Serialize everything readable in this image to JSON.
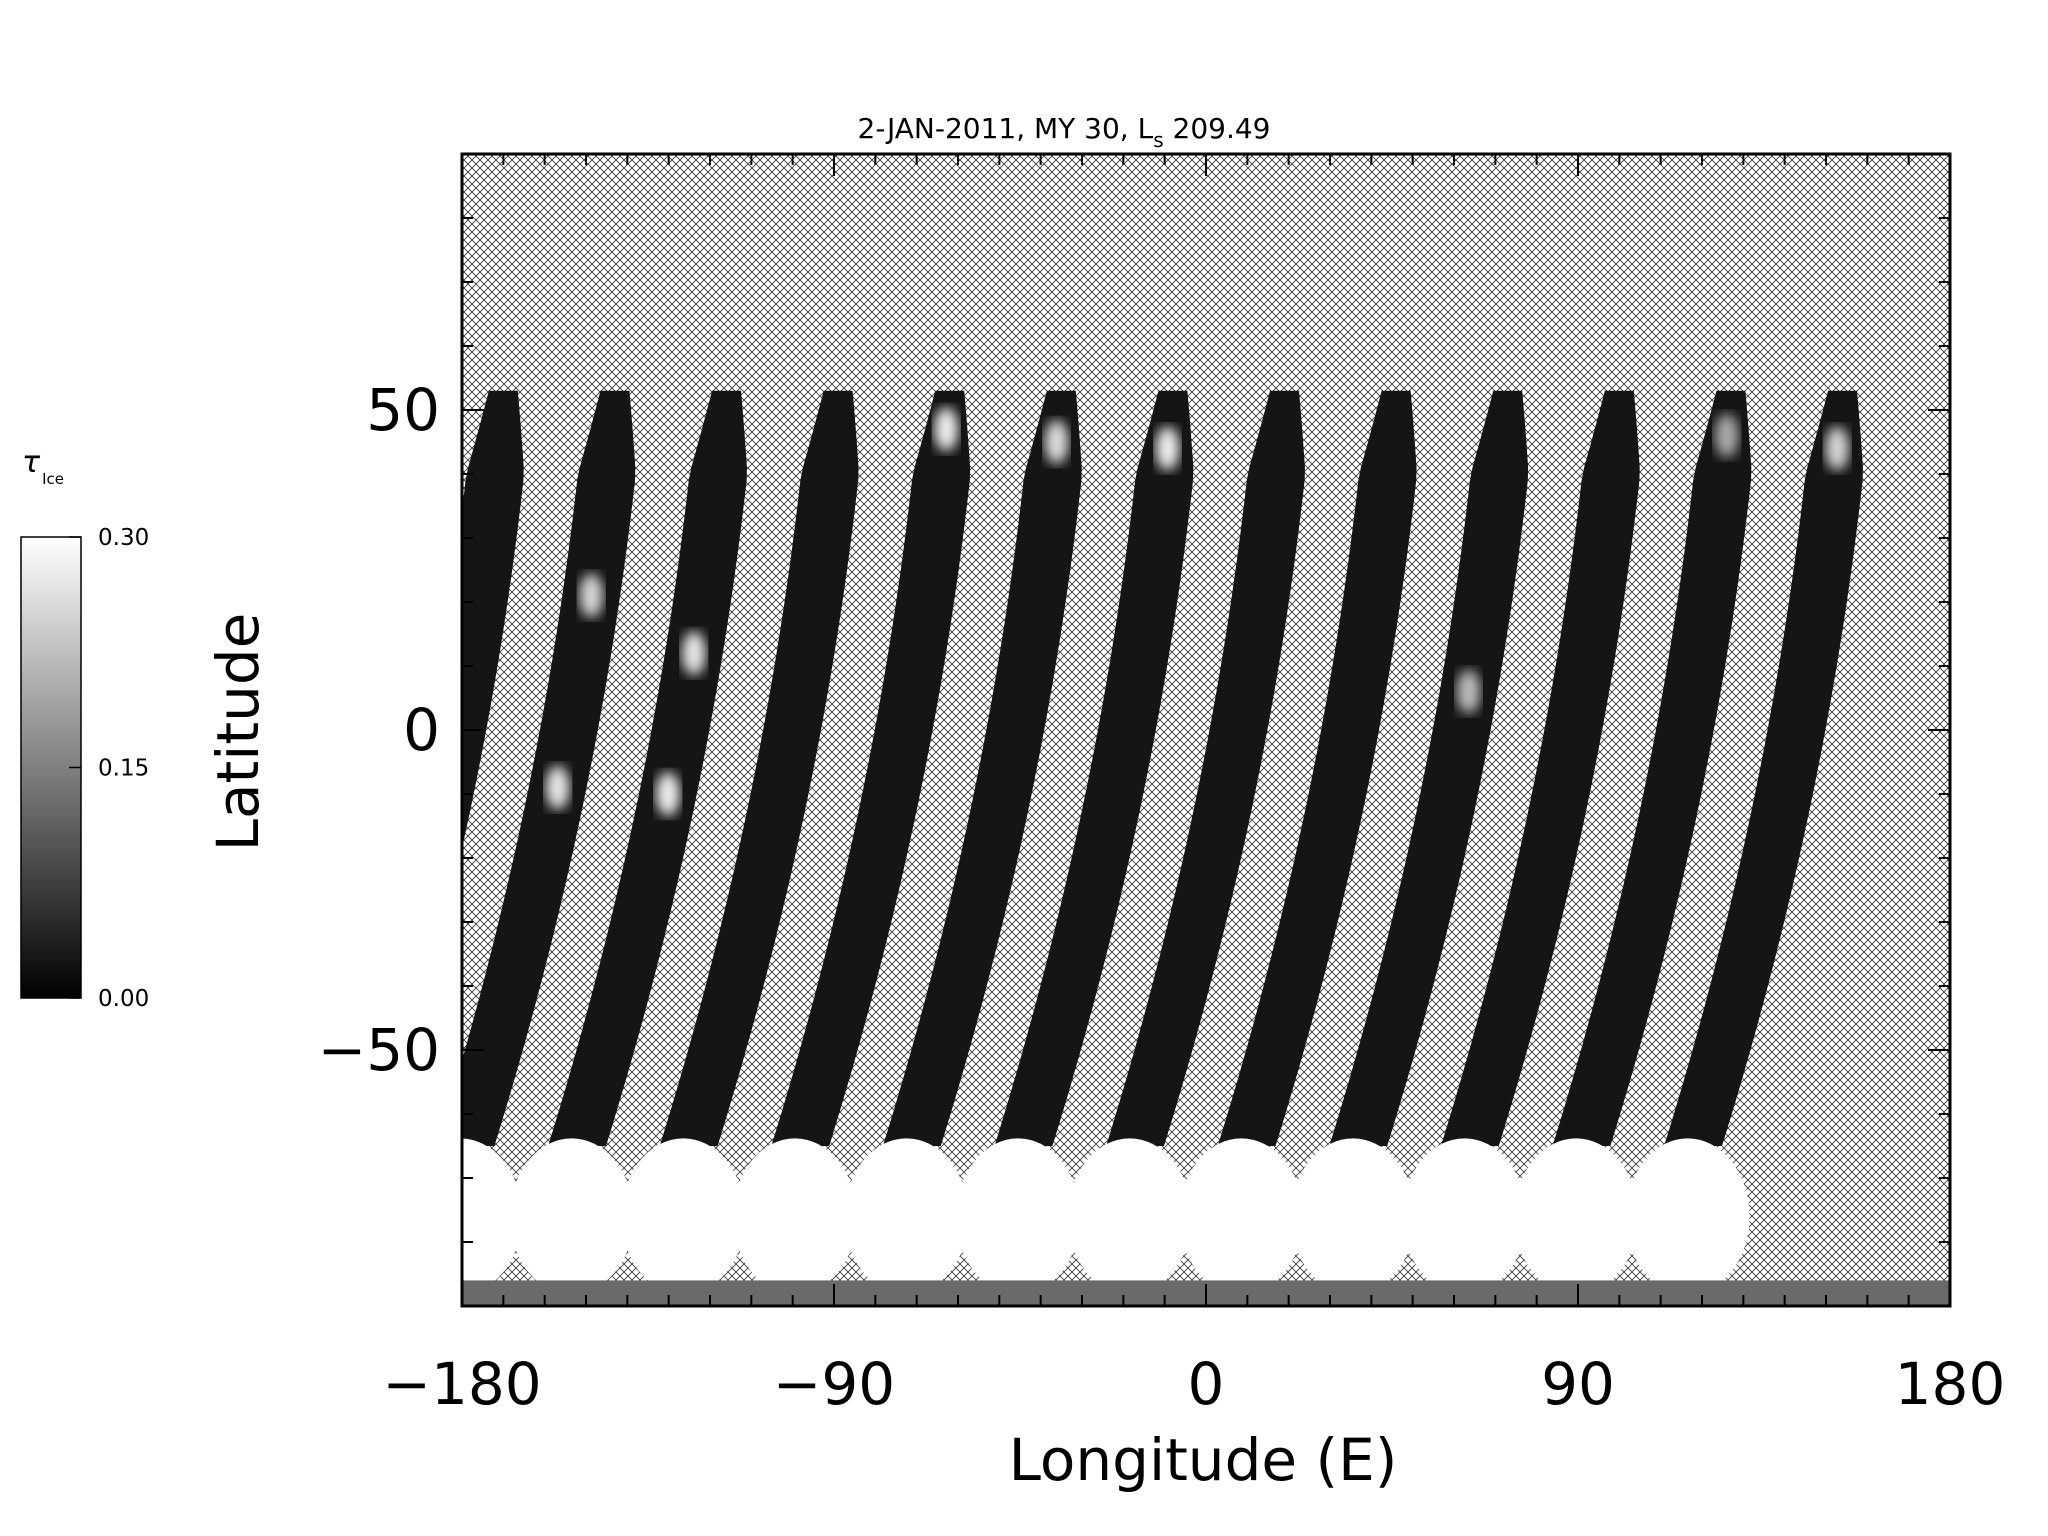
{
  "chart_data": {
    "type": "heatmap",
    "title_main": "2-JAN-2011, MY 30,  L",
    "title_sub": "s",
    "title_value": " 209.49",
    "xlabel": "Longitude (E)",
    "ylabel": "Latitude",
    "xlim": [
      -180,
      180
    ],
    "ylim": [
      -90,
      90
    ],
    "xticks": [
      -180,
      -90,
      0,
      90,
      180
    ],
    "yticks": [
      -50,
      0,
      50
    ],
    "xtick_labels": [
      "−180",
      "−90",
      "0",
      "90",
      "180"
    ],
    "ytick_labels": [
      "−50",
      "0",
      "50"
    ],
    "colorbar": {
      "label_symbol": "τ",
      "label_sub": "Ice",
      "range": [
        0.0,
        0.3
      ],
      "tick_values": [
        0.0,
        0.15,
        0.3
      ],
      "tick_labels": [
        "0.00",
        "0.15",
        "0.30"
      ],
      "colors": [
        "#000000",
        "#ffffff"
      ]
    },
    "no_data_pattern": "crosshatch",
    "swaths": [
      {
        "lon": -170,
        "bright_spots": []
      },
      {
        "lon": -143,
        "bright_spots": [
          {
            "lat": 21,
            "value": 0.25
          },
          {
            "lat": -9,
            "value": 0.27
          }
        ]
      },
      {
        "lon": -116,
        "bright_spots": [
          {
            "lat": 12,
            "value": 0.27
          },
          {
            "lat": -10,
            "value": 0.28
          }
        ]
      },
      {
        "lon": -89,
        "bright_spots": []
      },
      {
        "lon": -62,
        "bright_spots": [
          {
            "lat": 47,
            "value": 0.28
          }
        ]
      },
      {
        "lon": -35,
        "bright_spots": [
          {
            "lat": 45,
            "value": 0.26
          }
        ]
      },
      {
        "lon": -8,
        "bright_spots": [
          {
            "lat": 44,
            "value": 0.28
          }
        ]
      },
      {
        "lon": 19,
        "bright_spots": []
      },
      {
        "lon": 46,
        "bright_spots": []
      },
      {
        "lon": 73,
        "bright_spots": [
          {
            "lat": 6,
            "value": 0.22
          }
        ]
      },
      {
        "lon": 100,
        "bright_spots": []
      },
      {
        "lon": 127,
        "bright_spots": [
          {
            "lat": 46,
            "value": 0.2
          }
        ]
      },
      {
        "lon": 154,
        "bright_spots": [
          {
            "lat": 44,
            "value": 0.25
          }
        ]
      }
    ],
    "south_polar_cap": {
      "lat_from": -90,
      "lat_to": -62,
      "value": 0.3
    }
  }
}
